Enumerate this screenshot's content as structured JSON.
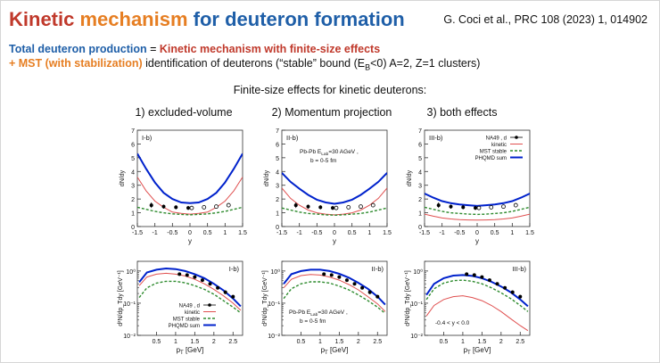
{
  "slide": {
    "title_part1": "Kinetic ",
    "title_part2": "mechanism ",
    "title_part3": "for deuteron formation",
    "reference": "G. Coci et al., PRC 108 (2023) 1, 014902",
    "line1_a": "Total deuteron production",
    "line1_b": " = ",
    "line1_c": "Kinetic mechanism with finite-size effects",
    "line2_a": "+ MST (with stabilization)",
    "line2_b": " identification of deuterons (“stable” bound (E",
    "line2_b_sub": "B",
    "line2_c": "<0) A=2, Z=1 clusters)",
    "subtitle": "Finite-size effects for kinetic deuterons:",
    "col_titles": [
      "1) excluded-volume",
      "2) Momentum projection",
      "3) both effects"
    ]
  },
  "colors": {
    "kinetic": "#e05050",
    "mst": "#2e8b2e",
    "phqmd": "#0022cc",
    "data": "#000000",
    "axis": "#333333"
  },
  "chart_data": [
    {
      "type": "line",
      "panel": "I-b)",
      "xlabel": "y",
      "ylabel": "dN/dy",
      "xlim": [
        -1.5,
        1.5
      ],
      "ylim": [
        0,
        7
      ],
      "xticks": [
        "-1.5",
        "-1",
        "-0.5",
        "0",
        "0.5",
        "1",
        "1.5"
      ],
      "yticks": [
        "0",
        "1",
        "2",
        "3",
        "4",
        "5",
        "6",
        "7"
      ],
      "x": [
        -1.5,
        -1.25,
        -1.0,
        -0.75,
        -0.5,
        -0.25,
        0,
        0.25,
        0.5,
        0.75,
        1.0,
        1.25,
        1.5
      ],
      "series": [
        {
          "name": "PHQMD sum",
          "values": [
            5.3,
            4.2,
            3.2,
            2.45,
            2.0,
            1.75,
            1.7,
            1.75,
            2.0,
            2.45,
            3.2,
            4.2,
            5.3
          ]
        },
        {
          "name": "kinetic",
          "values": [
            3.6,
            2.6,
            1.85,
            1.4,
            1.05,
            0.95,
            0.9,
            0.95,
            1.05,
            1.4,
            1.85,
            2.6,
            3.6
          ]
        },
        {
          "name": "MST stable",
          "values": [
            1.4,
            1.25,
            1.1,
            1.0,
            0.92,
            0.88,
            0.85,
            0.88,
            0.92,
            1.0,
            1.1,
            1.25,
            1.4
          ]
        }
      ],
      "data_points": {
        "name": "NA49 , d",
        "x": [
          -1.1,
          -0.75,
          -0.4,
          -0.05
        ],
        "y": [
          1.55,
          1.45,
          1.4,
          1.35
        ],
        "err": [
          0.2,
          0.15,
          0.15,
          0.15
        ]
      },
      "reflected_points": {
        "x": [
          0.05,
          0.4,
          0.75,
          1.1
        ],
        "y": [
          1.35,
          1.4,
          1.45,
          1.55
        ]
      }
    },
    {
      "type": "line",
      "panel": "II-b)",
      "xlabel": "y",
      "ylabel": "dN/dy",
      "xlim": [
        -1.5,
        1.5
      ],
      "ylim": [
        0,
        7
      ],
      "xticks": [
        "-1.5",
        "-1",
        "-0.5",
        "0",
        "0.5",
        "1",
        "1.5"
      ],
      "yticks": [
        "0",
        "1",
        "2",
        "3",
        "4",
        "5",
        "6",
        "7"
      ],
      "annotation_1": "Pb-Pb E",
      "annotation_1_sub": "Lab",
      "annotation_1_tail": "=30 AGeV ,",
      "annotation_2": "b = 0-5 fm",
      "x": [
        -1.5,
        -1.25,
        -1.0,
        -0.75,
        -0.5,
        -0.25,
        0,
        0.25,
        0.5,
        0.75,
        1.0,
        1.25,
        1.5
      ],
      "series": [
        {
          "name": "PHQMD sum",
          "values": [
            3.9,
            3.25,
            2.75,
            2.3,
            1.95,
            1.75,
            1.65,
            1.75,
            1.95,
            2.3,
            2.75,
            3.25,
            3.9
          ]
        },
        {
          "name": "kinetic",
          "values": [
            2.8,
            2.05,
            1.55,
            1.2,
            1.0,
            0.9,
            0.85,
            0.9,
            1.0,
            1.2,
            1.55,
            2.05,
            2.8
          ]
        },
        {
          "name": "MST stable",
          "values": [
            1.35,
            1.2,
            1.05,
            0.95,
            0.9,
            0.85,
            0.82,
            0.85,
            0.9,
            0.95,
            1.05,
            1.2,
            1.35
          ]
        }
      ],
      "data_points": {
        "name": "NA49 , d",
        "x": [
          -1.1,
          -0.75,
          -0.4,
          -0.05
        ],
        "y": [
          1.55,
          1.45,
          1.4,
          1.35
        ],
        "err": [
          0.2,
          0.15,
          0.15,
          0.15
        ]
      },
      "reflected_points": {
        "x": [
          0.05,
          0.4,
          0.75,
          1.1
        ],
        "y": [
          1.35,
          1.4,
          1.45,
          1.55
        ]
      }
    },
    {
      "type": "line",
      "panel": "III-b)",
      "xlabel": "y",
      "ylabel": "dN/dy",
      "xlim": [
        -1.5,
        1.5
      ],
      "ylim": [
        0,
        7
      ],
      "xticks": [
        "-1.5",
        "-1",
        "-0.5",
        "0",
        "0.5",
        "1",
        "1.5"
      ],
      "yticks": [
        "0",
        "1",
        "2",
        "3",
        "4",
        "5",
        "6",
        "7"
      ],
      "legend": [
        "NA49 , d",
        "kinetic",
        "MST stable",
        "PHQMD sum"
      ],
      "x": [
        -1.5,
        -1.25,
        -1.0,
        -0.75,
        -0.5,
        -0.25,
        0,
        0.25,
        0.5,
        0.75,
        1.0,
        1.25,
        1.5
      ],
      "series": [
        {
          "name": "PHQMD sum",
          "values": [
            2.4,
            2.1,
            1.85,
            1.7,
            1.6,
            1.55,
            1.5,
            1.55,
            1.6,
            1.7,
            1.85,
            2.1,
            2.4
          ]
        },
        {
          "name": "kinetic",
          "values": [
            0.9,
            0.75,
            0.62,
            0.55,
            0.5,
            0.48,
            0.47,
            0.48,
            0.5,
            0.55,
            0.62,
            0.75,
            0.9
          ]
        },
        {
          "name": "MST stable",
          "values": [
            1.4,
            1.25,
            1.1,
            1.0,
            0.95,
            0.9,
            0.88,
            0.9,
            0.95,
            1.0,
            1.1,
            1.25,
            1.4
          ]
        }
      ],
      "data_points": {
        "name": "NA49 , d",
        "x": [
          -1.1,
          -0.75,
          -0.4,
          -0.05
        ],
        "y": [
          1.55,
          1.45,
          1.4,
          1.35
        ],
        "err": [
          0.2,
          0.15,
          0.15,
          0.15
        ]
      },
      "reflected_points": {
        "x": [
          0.05,
          0.4,
          0.75,
          1.1
        ],
        "y": [
          1.35,
          1.4,
          1.45,
          1.55
        ]
      }
    },
    {
      "type": "line",
      "panel": "I-b)",
      "xlabel": "p",
      "xlabel_sub": "T",
      "xlabel_tail": " [GeV]",
      "ylabel": "d²N/dp_Tdy [GeV⁻¹]",
      "ylog": true,
      "ylim": [
        0.01,
        2
      ],
      "xlim": [
        0,
        2.75
      ],
      "xticks": [
        "0.5",
        "1",
        "1.5",
        "2",
        "2.5"
      ],
      "yticks": [
        "10⁰",
        "10⁻¹",
        "10⁻²"
      ],
      "legend": [
        "NA49 , d",
        "kinetic",
        "MST stable",
        "PHQMD sum"
      ],
      "x": [
        0.05,
        0.25,
        0.5,
        0.75,
        1.0,
        1.25,
        1.5,
        1.75,
        2.0,
        2.25,
        2.5,
        2.7
      ],
      "series": [
        {
          "name": "PHQMD sum",
          "values": [
            0.45,
            0.9,
            1.1,
            1.2,
            1.15,
            1.0,
            0.8,
            0.6,
            0.4,
            0.25,
            0.14,
            0.08
          ]
        },
        {
          "name": "kinetic",
          "values": [
            0.35,
            0.65,
            0.8,
            0.85,
            0.8,
            0.7,
            0.55,
            0.4,
            0.27,
            0.17,
            0.1,
            0.06
          ]
        },
        {
          "name": "MST stable",
          "values": [
            0.15,
            0.3,
            0.42,
            0.48,
            0.48,
            0.43,
            0.35,
            0.27,
            0.19,
            0.12,
            0.075,
            0.05
          ]
        }
      ],
      "data_points": {
        "name": "NA49 , d",
        "x": [
          1.1,
          1.3,
          1.5,
          1.7,
          1.9,
          2.1,
          2.3,
          2.5
        ],
        "y": [
          0.8,
          0.75,
          0.65,
          0.52,
          0.4,
          0.3,
          0.22,
          0.16
        ],
        "err": [
          0.08,
          0.07,
          0.06,
          0.05,
          0.04,
          0.03,
          0.03,
          0.02
        ]
      }
    },
    {
      "type": "line",
      "panel": "II-b)",
      "xlabel": "p",
      "xlabel_sub": "T",
      "xlabel_tail": " [GeV]",
      "ylabel": "d²N/dp_Tdy [GeV⁻¹]",
      "ylog": true,
      "ylim": [
        0.01,
        2
      ],
      "xlim": [
        0,
        2.75
      ],
      "xticks": [
        "0.5",
        "1",
        "1.5",
        "2",
        "2.5"
      ],
      "yticks": [
        "10⁰",
        "10⁻¹",
        "10⁻²"
      ],
      "annotation_1": "Pb-Pb E",
      "annotation_1_sub": "Lab",
      "annotation_1_tail": "=30 AGeV ,",
      "annotation_2": "b = 0-5 fm",
      "x": [
        0.05,
        0.25,
        0.5,
        0.75,
        1.0,
        1.25,
        1.5,
        1.75,
        2.0,
        2.25,
        2.5,
        2.7
      ],
      "series": [
        {
          "name": "PHQMD sum",
          "values": [
            0.4,
            0.8,
            1.0,
            1.1,
            1.1,
            1.0,
            0.82,
            0.62,
            0.43,
            0.28,
            0.16,
            0.09
          ]
        },
        {
          "name": "kinetic",
          "values": [
            0.3,
            0.55,
            0.72,
            0.78,
            0.75,
            0.65,
            0.52,
            0.38,
            0.26,
            0.16,
            0.095,
            0.055
          ]
        },
        {
          "name": "MST stable",
          "values": [
            0.14,
            0.28,
            0.4,
            0.46,
            0.46,
            0.42,
            0.34,
            0.26,
            0.18,
            0.12,
            0.075,
            0.048
          ]
        }
      ],
      "data_points": {
        "name": "NA49 , d",
        "x": [
          1.1,
          1.3,
          1.5,
          1.7,
          1.9,
          2.1,
          2.3,
          2.5
        ],
        "y": [
          0.8,
          0.75,
          0.65,
          0.52,
          0.4,
          0.3,
          0.22,
          0.16
        ],
        "err": [
          0.08,
          0.07,
          0.06,
          0.05,
          0.04,
          0.03,
          0.03,
          0.02
        ]
      }
    },
    {
      "type": "line",
      "panel": "III-b)",
      "xlabel": "p",
      "xlabel_sub": "T",
      "xlabel_tail": " [GeV]",
      "ylabel": "d²N/dp_Tdy [GeV⁻¹]",
      "ylog": true,
      "ylim": [
        0.01,
        2
      ],
      "xlim": [
        0,
        2.75
      ],
      "xticks": [
        "0.5",
        "1",
        "1.5",
        "2",
        "2.5"
      ],
      "yticks": [
        "10⁰",
        "10⁻¹",
        "10⁻²"
      ],
      "annotation_1": "-0.4 < y < 0.0",
      "x": [
        0.05,
        0.25,
        0.5,
        0.75,
        1.0,
        1.25,
        1.5,
        1.75,
        2.0,
        2.25,
        2.5,
        2.7
      ],
      "series": [
        {
          "name": "PHQMD sum",
          "values": [
            0.18,
            0.4,
            0.6,
            0.72,
            0.75,
            0.7,
            0.6,
            0.46,
            0.33,
            0.22,
            0.13,
            0.08
          ]
        },
        {
          "name": "MST stable",
          "values": [
            0.13,
            0.28,
            0.42,
            0.5,
            0.52,
            0.48,
            0.4,
            0.3,
            0.21,
            0.14,
            0.085,
            0.055
          ]
        },
        {
          "name": "kinetic",
          "values": [
            0.04,
            0.085,
            0.13,
            0.16,
            0.17,
            0.15,
            0.12,
            0.085,
            0.055,
            0.033,
            0.02,
            0.014
          ]
        }
      ],
      "data_points": {
        "name": "NA49 , d",
        "x": [
          1.1,
          1.3,
          1.5,
          1.7,
          1.9,
          2.1,
          2.3,
          2.5
        ],
        "y": [
          0.8,
          0.75,
          0.65,
          0.52,
          0.4,
          0.3,
          0.22,
          0.16
        ],
        "err": [
          0.08,
          0.07,
          0.06,
          0.05,
          0.04,
          0.03,
          0.03,
          0.02
        ]
      }
    }
  ]
}
